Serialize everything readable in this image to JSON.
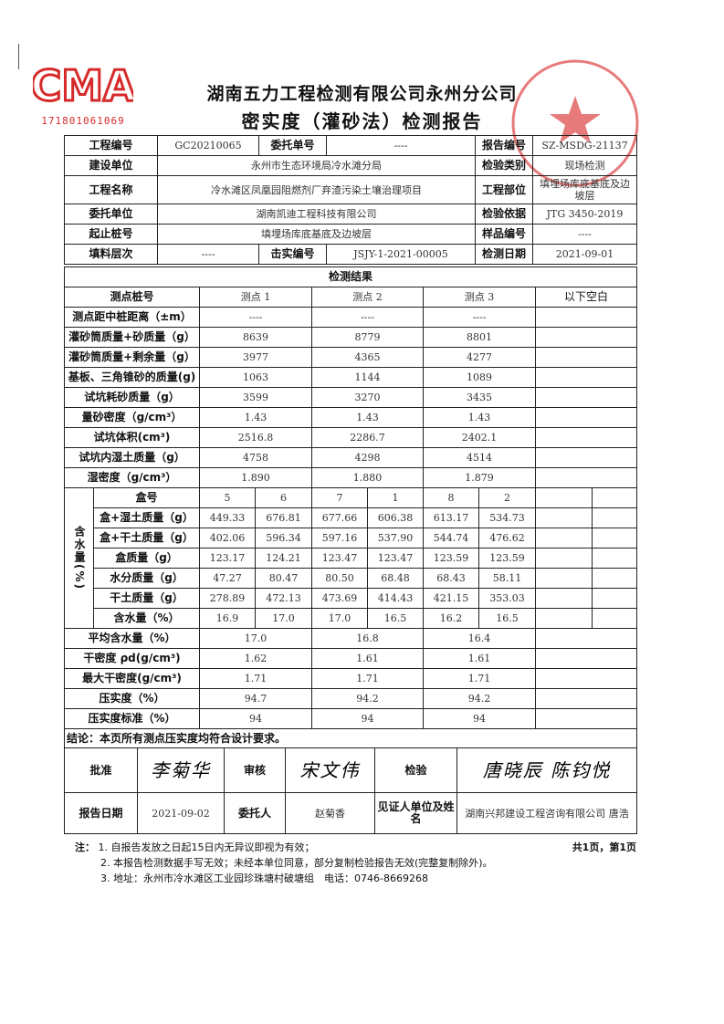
{
  "logo": {
    "text": "CMA",
    "number": "171801061069",
    "color": "#d62a2a"
  },
  "stamp": {
    "text": "湖南五力工程检测有限公司永州分公司 检验检测专用章",
    "number": "4311030241",
    "color": "#e05050"
  },
  "header": {
    "company": "湖南五力工程检测有限公司永州分公司",
    "title": "密实度（灌砂法）检测报告"
  },
  "info": {
    "project_no_label": "工程编号",
    "project_no": "GC20210065",
    "commission_no_label": "委托单号",
    "commission_no": "----",
    "report_no_label": "报告编号",
    "report_no": "SZ-MSDG-21137",
    "builder_label": "建设单位",
    "builder": "永州市生态环境局冷水滩分局",
    "test_type_label": "检验类别",
    "test_type": "现场检测",
    "project_name_label": "工程名称",
    "project_name": "冷水滩区凤凰园阻燃剂厂弃渣污染土壤治理项目",
    "project_part_label": "工程部位",
    "project_part": "填埋场库底基底及边坡层",
    "client_label": "委托单位",
    "client": "湖南凯迪工程科技有限公司",
    "basis_label": "检验依据",
    "basis": "JTG 3450-2019",
    "station_label": "起止桩号",
    "station": "填埋场库底基底及边坡层",
    "sample_no_label": "样品编号",
    "sample_no": "----",
    "layer_label": "填料层次",
    "layer": "----",
    "compact_no_label": "击实编号",
    "compact_no": "JSJY-1-2021-00005",
    "test_date_label": "检测日期",
    "test_date": "2021-09-01"
  },
  "results": {
    "title": "检测结果",
    "point_label": "测点桩号",
    "points": [
      "测点 1",
      "测点 2",
      "测点 3"
    ],
    "blank_note": "以下空白",
    "rows1": [
      {
        "label": "测点距中桩距离（±m）",
        "values": [
          "----",
          "----",
          "----"
        ]
      },
      {
        "label": "灌砂筒质量+砂质量（g）",
        "values": [
          "8639",
          "8779",
          "8801"
        ]
      },
      {
        "label": "灌砂筒质量+剩余量（g）",
        "values": [
          "3977",
          "4365",
          "4277"
        ]
      },
      {
        "label": "基板、三角锥砂的质量(g)",
        "values": [
          "1063",
          "1144",
          "1089"
        ]
      },
      {
        "label": "试坑耗砂质量（g）",
        "values": [
          "3599",
          "3270",
          "3435"
        ]
      },
      {
        "label": "量砂密度（g/cm³）",
        "values": [
          "1.43",
          "1.43",
          "1.43"
        ]
      },
      {
        "label": "试坑体积(cm³)",
        "values": [
          "2516.8",
          "2286.7",
          "2402.1"
        ]
      },
      {
        "label": "试坑内湿土质量（g）",
        "values": [
          "4758",
          "4298",
          "4514"
        ]
      },
      {
        "label": "湿密度（g/cm³）",
        "values": [
          "1.890",
          "1.880",
          "1.879"
        ]
      }
    ],
    "moisture_label": "含水量(%)",
    "moisture_rows": [
      {
        "label": "盒号",
        "values": [
          "5",
          "6",
          "7",
          "1",
          "8",
          "2"
        ]
      },
      {
        "label": "盒+湿土质量（g）",
        "values": [
          "449.33",
          "676.81",
          "677.66",
          "606.38",
          "613.17",
          "534.73"
        ]
      },
      {
        "label": "盒+干土质量（g）",
        "values": [
          "402.06",
          "596.34",
          "597.16",
          "537.90",
          "544.74",
          "476.62"
        ]
      },
      {
        "label": "盒质量（g）",
        "values": [
          "123.17",
          "124.21",
          "123.47",
          "123.47",
          "123.59",
          "123.59"
        ]
      },
      {
        "label": "水分质量（g）",
        "values": [
          "47.27",
          "80.47",
          "80.50",
          "68.48",
          "68.43",
          "58.11"
        ]
      },
      {
        "label": "干土质量（g）",
        "values": [
          "278.89",
          "472.13",
          "473.69",
          "414.43",
          "421.15",
          "353.03"
        ]
      },
      {
        "label": "含水量（%）",
        "values": [
          "16.9",
          "17.0",
          "17.0",
          "16.5",
          "16.2",
          "16.5"
        ]
      }
    ],
    "avg_moisture": {
      "label": "平均含水量（%）",
      "values": [
        "17.0",
        "16.8",
        "16.4"
      ]
    },
    "rows2": [
      {
        "label": "干密度 ρd(g/cm³)",
        "values": [
          "1.62",
          "1.61",
          "1.61"
        ]
      },
      {
        "label": "最大干密度(g/cm³)",
        "values": [
          "1.71",
          "1.71",
          "1.71"
        ]
      },
      {
        "label": "压实度（%）",
        "values": [
          "94.7",
          "94.2",
          "94.2"
        ]
      },
      {
        "label": "压实度标准（%）",
        "values": [
          "94",
          "94",
          "94"
        ]
      }
    ],
    "conclusion": "结论：本页所有测点压实度均符合设计要求。"
  },
  "signoff": {
    "approve_label": "批准",
    "approve_sig": "李菊华",
    "review_label": "审核",
    "review_sig": "宋文伟",
    "inspect_label": "检验",
    "inspect_sig": "唐晓辰 陈钧悦",
    "report_date_label": "报告日期",
    "report_date": "2021-09-02",
    "client_person_label": "委托人",
    "client_person": "赵菊香",
    "witness_label": "见证人单位及姓名",
    "witness": "湖南兴邦建设工程咨询有限公司 唐浩"
  },
  "footer": {
    "notes_label": "注：",
    "notes": [
      "1. 自报告发放之日起15日内无异议即视为有效；",
      "2. 本报告检测数据手写无效；未经本单位同意，部分复制检验报告无效(完整复制除外)。",
      "3. 地址：永州市冷水滩区工业园珍珠塘村破塘组　电话：0746-8669268"
    ],
    "page_info": "共1页，第1页"
  }
}
